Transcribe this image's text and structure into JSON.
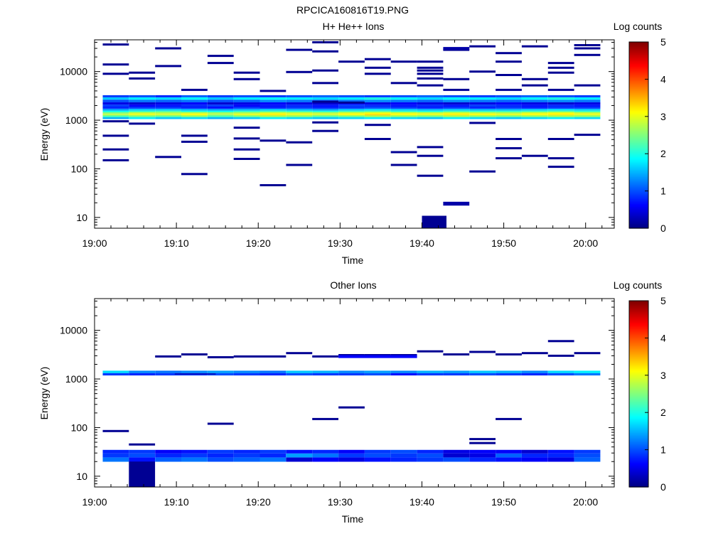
{
  "figure_title": "RPCICA160816T19.PNG",
  "colors": {
    "colormap": [
      "#00007f",
      "#0000ff",
      "#007fff",
      "#00ffff",
      "#7fff7f",
      "#ffff00",
      "#ff7f00",
      "#ff0000",
      "#7f0000"
    ],
    "axis": "#000000",
    "background": "#ffffff"
  },
  "chart_data": [
    {
      "type": "heatmap",
      "title": "H+ He++ Ions",
      "xlabel": "Time",
      "ylabel": "Energy (eV)",
      "x_unit": "minutes after 19:00",
      "xlim": [
        0,
        63.5
      ],
      "ylim": [
        6,
        45000
      ],
      "y_scale": "log",
      "x_ticks": [
        0,
        10,
        20,
        30,
        40,
        50,
        60
      ],
      "x_tick_labels": [
        "19:00",
        "19:10",
        "19:20",
        "19:30",
        "19:40",
        "19:50",
        "20:00"
      ],
      "y_ticks": [
        10,
        100,
        1000,
        10000
      ],
      "y_tick_labels": [
        "10",
        "100",
        "1000",
        "10000"
      ],
      "colorbar": {
        "label": "Log counts",
        "range": [
          0,
          5
        ],
        "ticks": [
          0,
          1,
          2,
          3,
          4,
          5
        ],
        "tick_labels": [
          "0",
          "1",
          "2",
          "3",
          "4",
          "5"
        ]
      },
      "time_bins": [
        [
          1,
          4.2
        ],
        [
          4.2,
          7.4
        ],
        [
          7.4,
          10.6
        ],
        [
          10.6,
          13.8
        ],
        [
          13.8,
          17
        ],
        [
          17,
          20.2
        ],
        [
          20.2,
          23.4
        ],
        [
          23.4,
          26.6
        ],
        [
          26.6,
          29.8
        ],
        [
          29.8,
          33
        ],
        [
          33,
          36.2
        ],
        [
          36.2,
          39.4
        ],
        [
          39.4,
          42.6
        ],
        [
          42.6,
          45.8
        ],
        [
          45.8,
          49
        ],
        [
          49,
          52.2
        ],
        [
          52.2,
          55.4
        ],
        [
          55.4,
          58.6
        ],
        [
          58.6,
          61.8
        ]
      ],
      "band": {
        "energies": [
          1100,
          1200,
          1300,
          1400,
          1500,
          1650,
          1800,
          2000,
          2200,
          2500,
          2800,
          3100
        ],
        "values": [
          [
            1.5,
            2.2,
            2.8,
            2.6,
            2.0,
            1.4,
            0.8,
            0.9,
            0.5,
            1.0,
            1.6,
            0.9
          ],
          [
            1.8,
            2.4,
            3.0,
            2.9,
            2.2,
            1.6,
            0.9,
            0.6,
            0.4,
            1.2,
            1.8,
            1.0
          ],
          [
            1.6,
            2.3,
            2.9,
            2.8,
            2.3,
            1.6,
            0.9,
            0.7,
            0.5,
            1.1,
            1.7,
            0.8
          ],
          [
            1.7,
            2.5,
            3.1,
            2.9,
            2.1,
            1.5,
            0.8,
            0.8,
            0.6,
            1.2,
            1.9,
            1.1
          ],
          [
            1.5,
            2.2,
            2.7,
            2.7,
            2.0,
            1.4,
            0.7,
            0.9,
            0.4,
            1.0,
            1.6,
            0.9
          ],
          [
            1.6,
            2.4,
            3.0,
            2.8,
            2.2,
            1.5,
            0.9,
            0.6,
            0.5,
            1.1,
            1.8,
            1.0
          ],
          [
            1.8,
            2.6,
            3.2,
            3.0,
            2.3,
            1.6,
            0.8,
            0.7,
            0.6,
            1.3,
            1.9,
            0.9
          ],
          [
            1.7,
            2.5,
            3.0,
            2.9,
            2.2,
            1.5,
            0.9,
            0.8,
            0.5,
            1.2,
            1.8,
            1.0
          ],
          [
            1.6,
            2.3,
            2.9,
            2.8,
            2.1,
            1.4,
            0.8,
            0.7,
            0.4,
            1.1,
            1.7,
            1.1
          ],
          [
            1.7,
            2.4,
            3.1,
            3.0,
            2.3,
            1.6,
            0.9,
            0.9,
            0.6,
            1.2,
            1.8,
            1.0
          ],
          [
            1.8,
            2.6,
            3.3,
            3.1,
            2.4,
            1.7,
            1.0,
            0.8,
            0.5,
            1.3,
            2.0,
            0.9
          ],
          [
            1.7,
            2.5,
            3.1,
            3.0,
            2.2,
            1.6,
            0.9,
            0.7,
            0.6,
            1.2,
            1.9,
            1.0
          ],
          [
            1.6,
            2.4,
            3.0,
            2.9,
            2.1,
            1.5,
            0.8,
            0.8,
            0.5,
            1.1,
            1.7,
            1.1
          ],
          [
            1.8,
            2.6,
            3.2,
            3.0,
            2.3,
            1.6,
            0.9,
            0.7,
            0.4,
            1.3,
            1.9,
            1.0
          ],
          [
            1.7,
            2.5,
            3.1,
            2.9,
            2.2,
            1.5,
            0.8,
            0.9,
            0.5,
            1.2,
            1.8,
            0.9
          ],
          [
            1.6,
            2.4,
            3.0,
            2.8,
            2.2,
            1.5,
            0.9,
            0.8,
            0.6,
            1.1,
            1.7,
            1.0
          ],
          [
            1.7,
            2.5,
            3.1,
            3.0,
            2.3,
            1.6,
            0.8,
            0.7,
            0.5,
            1.2,
            1.9,
            1.1
          ],
          [
            1.8,
            2.6,
            3.2,
            3.1,
            2.4,
            1.7,
            0.9,
            0.8,
            0.4,
            1.3,
            2.0,
            1.0
          ],
          [
            1.7,
            2.5,
            3.0,
            2.9,
            2.2,
            1.6,
            0.9,
            0.7,
            0.5,
            1.2,
            1.8,
            0.9
          ]
        ]
      },
      "sparse": [
        [
          1,
          36000
        ],
        [
          1,
          14000
        ],
        [
          1,
          9000
        ],
        [
          1,
          480
        ],
        [
          1,
          250
        ],
        [
          1,
          150
        ],
        [
          1,
          950
        ],
        [
          2,
          9500
        ],
        [
          2,
          7200
        ],
        [
          2,
          850
        ],
        [
          3,
          30000
        ],
        [
          3,
          13000
        ],
        [
          3,
          175
        ],
        [
          4,
          4200
        ],
        [
          4,
          480
        ],
        [
          4,
          360
        ],
        [
          4,
          78
        ],
        [
          5,
          21000
        ],
        [
          5,
          15000
        ],
        [
          6,
          9500
        ],
        [
          6,
          7000
        ],
        [
          6,
          700
        ],
        [
          6,
          420
        ],
        [
          6,
          250
        ],
        [
          6,
          160
        ],
        [
          7,
          4000
        ],
        [
          7,
          380
        ],
        [
          7,
          46
        ],
        [
          8,
          28000
        ],
        [
          8,
          9800
        ],
        [
          8,
          350
        ],
        [
          8,
          120
        ],
        [
          9,
          40000
        ],
        [
          9,
          26000
        ],
        [
          9,
          10500
        ],
        [
          9,
          5800
        ],
        [
          9,
          2400
        ],
        [
          9,
          900
        ],
        [
          9,
          600
        ],
        [
          10,
          16000
        ],
        [
          10,
          2300
        ],
        [
          11,
          18000
        ],
        [
          11,
          12000
        ],
        [
          11,
          9000
        ],
        [
          11,
          800
        ],
        [
          11,
          410
        ],
        [
          12,
          16000
        ],
        [
          12,
          5800
        ],
        [
          12,
          220
        ],
        [
          12,
          120
        ],
        [
          13,
          16000
        ],
        [
          13,
          12000
        ],
        [
          13,
          10500
        ],
        [
          13,
          9000
        ],
        [
          13,
          7200
        ],
        [
          13,
          5200
        ],
        [
          13,
          280
        ],
        [
          13,
          185
        ],
        [
          13,
          72
        ],
        [
          14,
          28000
        ],
        [
          14,
          7000
        ],
        [
          14,
          4200
        ],
        [
          15,
          33000
        ],
        [
          15,
          10000
        ],
        [
          15,
          880
        ],
        [
          15,
          88
        ],
        [
          16,
          24000
        ],
        [
          16,
          16000
        ],
        [
          16,
          8500
        ],
        [
          16,
          4200
        ],
        [
          16,
          410
        ],
        [
          16,
          265
        ],
        [
          16,
          165
        ],
        [
          17,
          33000
        ],
        [
          17,
          7000
        ],
        [
          17,
          5200
        ],
        [
          17,
          185
        ],
        [
          18,
          15000
        ],
        [
          18,
          12000
        ],
        [
          18,
          9500
        ],
        [
          18,
          4200
        ],
        [
          18,
          410
        ],
        [
          18,
          165
        ],
        [
          18,
          110
        ],
        [
          19,
          35000
        ],
        [
          19,
          30000
        ],
        [
          19,
          22000
        ],
        [
          19,
          5200
        ],
        [
          19,
          500
        ]
      ],
      "blocks": [
        {
          "t": [
            40.0,
            43.0
          ],
          "e": [
            6,
            10.8
          ],
          "v": 0.1
        },
        {
          "t": [
            42.6,
            45.8
          ],
          "e": [
            17.5,
            21
          ],
          "v": 0.2
        },
        {
          "t": [
            42.6,
            45.8
          ],
          "e": [
            28000,
            32000
          ],
          "v": 0.2
        }
      ]
    },
    {
      "type": "heatmap",
      "title": "Other Ions",
      "xlabel": "Time",
      "ylabel": "Energy (eV)",
      "x_unit": "minutes after 19:00",
      "xlim": [
        0,
        63.5
      ],
      "ylim": [
        6,
        45000
      ],
      "y_scale": "log",
      "x_ticks": [
        0,
        10,
        20,
        30,
        40,
        50,
        60
      ],
      "x_tick_labels": [
        "19:00",
        "19:10",
        "19:20",
        "19:30",
        "19:40",
        "19:50",
        "20:00"
      ],
      "y_ticks": [
        10,
        100,
        1000,
        10000
      ],
      "y_tick_labels": [
        "10",
        "100",
        "1000",
        "10000"
      ],
      "colorbar": {
        "label": "Log counts",
        "range": [
          0,
          5
        ],
        "ticks": [
          0,
          1,
          2,
          3,
          4,
          5
        ],
        "tick_labels": [
          "0",
          "1",
          "2",
          "3",
          "4",
          "5"
        ]
      },
      "time_bins": [
        [
          1,
          4.2
        ],
        [
          4.2,
          7.4
        ],
        [
          7.4,
          10.6
        ],
        [
          10.6,
          13.8
        ],
        [
          13.8,
          17
        ],
        [
          17,
          20.2
        ],
        [
          20.2,
          23.4
        ],
        [
          23.4,
          26.6
        ],
        [
          26.6,
          29.8
        ],
        [
          29.8,
          33
        ],
        [
          33,
          36.2
        ],
        [
          36.2,
          39.4
        ],
        [
          39.4,
          42.6
        ],
        [
          42.6,
          45.8
        ],
        [
          45.8,
          49
        ],
        [
          49,
          52.2
        ],
        [
          52.2,
          55.4
        ],
        [
          55.4,
          58.6
        ],
        [
          58.6,
          61.8
        ]
      ],
      "band": {
        "energies": [
          1250,
          1400
        ],
        "values": [
          [
            0.9,
            1.7
          ],
          [
            0.8,
            1.3
          ],
          [
            0.9,
            1.2
          ],
          [
            0.9,
            1.3
          ],
          [
            1.0,
            1.4
          ],
          [
            0.9,
            1.3
          ],
          [
            0.8,
            1.2
          ],
          [
            1.0,
            1.6
          ],
          [
            0.9,
            1.5
          ],
          [
            0.9,
            1.3
          ],
          [
            1.0,
            1.4
          ],
          [
            0.7,
            1.3
          ],
          [
            0.9,
            1.5
          ],
          [
            0.9,
            1.4
          ],
          [
            1.0,
            1.6
          ],
          [
            0.9,
            1.5
          ],
          [
            0.8,
            1.3
          ],
          [
            1.0,
            1.7
          ],
          [
            1.2,
            1.8
          ]
        ]
      },
      "band2": {
        "energies": [
          22,
          27,
          32
        ],
        "values": [
          [
            1.2,
            0.9,
            0.8
          ],
          [
            0.7,
            1.0,
            0.9
          ],
          [
            1.1,
            0.8,
            0.6
          ],
          [
            1.2,
            0.9,
            0.7
          ],
          [
            1.0,
            0.8,
            0.9
          ],
          [
            1.1,
            0.9,
            0.8
          ],
          [
            1.2,
            0.8,
            0.9
          ],
          [
            0.4,
            1.4,
            0.7
          ],
          [
            0.6,
            1.2,
            0.8
          ],
          [
            0.5,
            0.9,
            0.6
          ],
          [
            0.7,
            1.0,
            0.9
          ],
          [
            0.8,
            0.9,
            1.0
          ],
          [
            0.9,
            1.0,
            0.8
          ],
          [
            1.0,
            0.4,
            0.5
          ],
          [
            0.8,
            0.5,
            0.6
          ],
          [
            0.7,
            1.1,
            0.6
          ],
          [
            0.6,
            0.8,
            0.4
          ],
          [
            0.5,
            0.8,
            0.7
          ],
          [
            1.1,
            1.0,
            0.9
          ]
        ]
      },
      "sparse": [
        [
          1,
          85
        ],
        [
          2,
          45
        ],
        [
          3,
          2900
        ],
        [
          4,
          3200
        ],
        [
          5,
          2800
        ],
        [
          5,
          120
        ],
        [
          6,
          2900
        ],
        [
          7,
          2900
        ],
        [
          8,
          3400
        ],
        [
          9,
          2900
        ],
        [
          9,
          150
        ],
        [
          10,
          3100
        ],
        [
          10,
          260
        ],
        [
          11,
          3100
        ],
        [
          12,
          3100
        ],
        [
          13,
          3700
        ],
        [
          14,
          3200
        ],
        [
          15,
          3600
        ],
        [
          15,
          58
        ],
        [
          15,
          48
        ],
        [
          16,
          3200
        ],
        [
          16,
          150
        ],
        [
          17,
          3400
        ],
        [
          18,
          3000
        ],
        [
          18,
          6000
        ],
        [
          19,
          3400
        ]
      ],
      "blocks": [
        {
          "t": [
            4.2,
            7.4
          ],
          "e": [
            6,
            20
          ],
          "v": 0.1
        },
        {
          "t": [
            9.8,
            14.8
          ],
          "e": [
            1240,
            1300
          ],
          "v": 0.2
        },
        {
          "t": [
            29.8,
            39.4
          ],
          "e": [
            2700,
            3100
          ],
          "v": 0.6
        }
      ]
    }
  ]
}
